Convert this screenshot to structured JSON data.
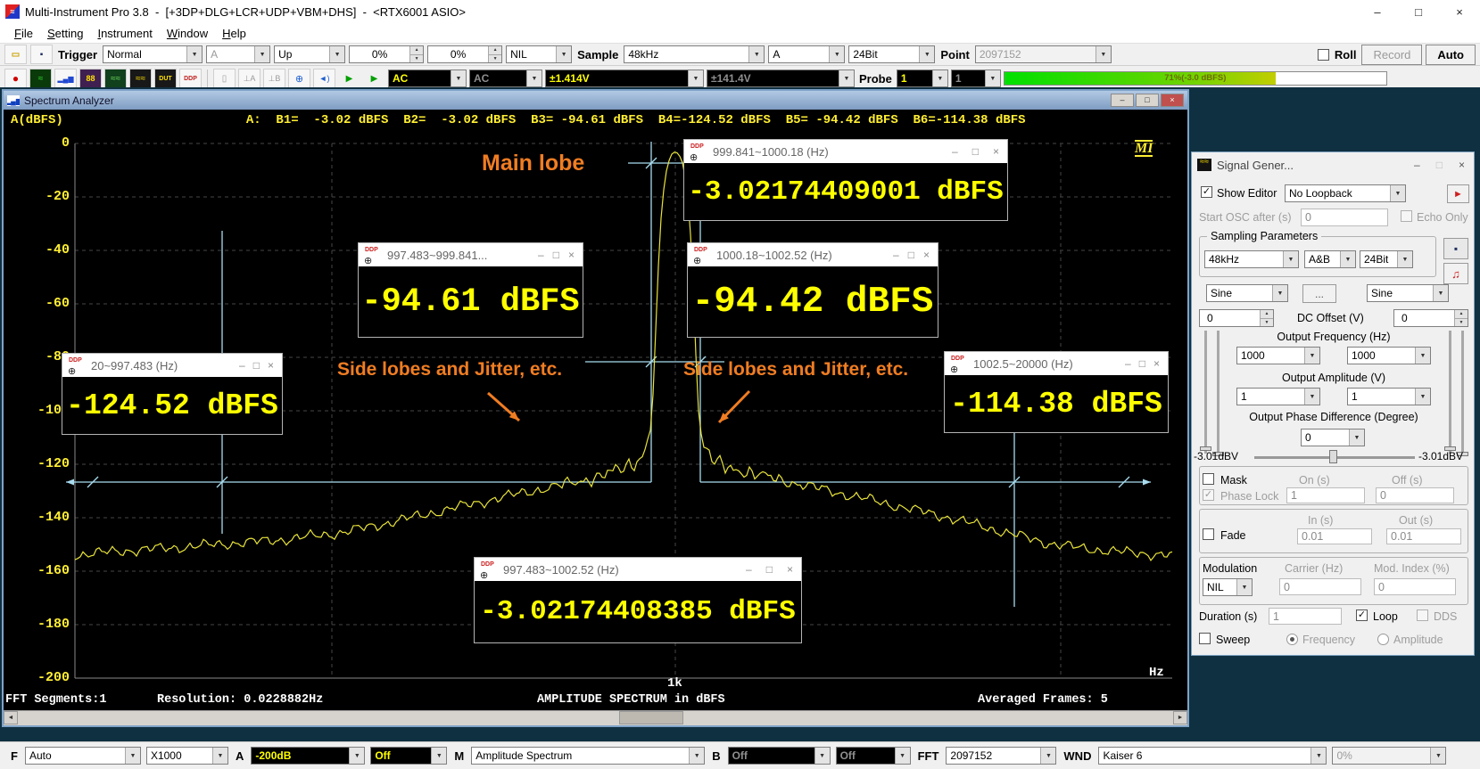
{
  "window": {
    "title": "Multi-Instrument Pro 3.8  -  [+3DP+DLG+LCR+UDP+VBM+DHS]  -  <RTX6001 ASIO>"
  },
  "menu": {
    "items": [
      "File",
      "Setting",
      "Instrument",
      "Window",
      "Help"
    ]
  },
  "icons": {
    "dropdown": "▼",
    "spin_up": "▲",
    "spin_down": "▼",
    "minimize": "–",
    "maximize": "□",
    "close": "×",
    "check": "✓",
    "play_green": "▶",
    "play_red": "►",
    "note": "♫",
    "ddp": "DDP",
    "magnifier": "⊕",
    "probe_a": "⊥A",
    "probe_b": "⊥B",
    "speaker": "◄)",
    "mic": "▯",
    "wave": "≈",
    "wave2": "≈≈",
    "bars": "▂▄▆",
    "dut": "DUT",
    "seg": "88",
    "record_dot": "●",
    "scroll_left": "◄",
    "scroll_right": "►",
    "folder": "▭",
    "floppy": "▪"
  },
  "toolbar1": {
    "trigger_label": "Trigger",
    "trigger_mode": "Normal",
    "trigger_source": "A",
    "trigger_edge": "Up",
    "trigger_level": "0%",
    "trigger_delay": "0%",
    "hpf": "NIL",
    "sample_label": "Sample",
    "sample_rate": "48kHz",
    "sample_channel": "A",
    "bit_depth": "24Bit",
    "point_label": "Point",
    "record_points": "2097152",
    "roll_label": "Roll",
    "record_label": "Record",
    "auto_label": "Auto"
  },
  "toolbar2": {
    "coupling_a": "AC",
    "coupling_b": "AC",
    "range_a": "±1.414V",
    "range_b": "±141.4V",
    "probe_label": "Probe",
    "probe_a": "1",
    "probe_b": "1",
    "progress_label": "71%(-3.0 dBFS)",
    "progress_percent": 71
  },
  "spectrum": {
    "title": "Spectrum Analyzer",
    "ylabel": "A(dBFS)",
    "readout": "A:  B1=  -3.02 dBFS  B2=  -3.02 dBFS  B3= -94.61 dBFS  B4=-124.52 dBFS  B5= -94.42 dBFS  B6=-114.38 dBFS",
    "logo": "MI",
    "y_ticks": [
      "0",
      "-20",
      "-40",
      "-60",
      "-80",
      "-100",
      "-120",
      "-140",
      "-160",
      "-180",
      "-200"
    ],
    "x_tick": "1k",
    "x_unit": "Hz",
    "status": {
      "segments": "FFT Segments:1",
      "resolution": "Resolution: 0.0228882Hz",
      "center": "AMPLITUDE SPECTRUM in dBFS",
      "frames": "Averaged Frames: 5"
    },
    "annotations": {
      "main_lobe": "Main lobe",
      "side_left": "Side lobes and Jitter, etc.",
      "side_right": "Side lobes and Jitter, etc."
    },
    "popups": [
      {
        "title": "999.841~1000.18 (Hz)",
        "value": "-3.02174409001 dBFS"
      },
      {
        "title": "997.483~999.841...",
        "value": "-94.61 dBFS"
      },
      {
        "title": "1000.18~1002.52 (Hz)",
        "value": "-94.42 dBFS"
      },
      {
        "title": "20~997.483 (Hz)",
        "value": "-124.52 dBFS"
      },
      {
        "title": "1002.5~20000 (Hz)",
        "value": "-114.38 dBFS"
      },
      {
        "title": "997.483~1002.52 (Hz)",
        "value": "-3.02174408385 dBFS"
      }
    ],
    "curve_anchors": [
      [
        80,
        -154
      ],
      [
        130,
        -152.5
      ],
      [
        200,
        -151
      ],
      [
        260,
        -149.5
      ],
      [
        320,
        -148
      ],
      [
        380,
        -145.5
      ],
      [
        430,
        -142
      ],
      [
        470,
        -139
      ],
      [
        510,
        -136
      ],
      [
        550,
        -133
      ],
      [
        585,
        -130.5
      ],
      [
        615,
        -128.5
      ],
      [
        645,
        -126.5
      ],
      [
        672,
        -124
      ],
      [
        695,
        -121.5
      ],
      [
        710,
        -119
      ],
      [
        720,
        -114
      ],
      [
        726,
        -106
      ],
      [
        729,
        -88
      ],
      [
        733,
        -52
      ],
      [
        738,
        -22
      ],
      [
        744,
        -8
      ],
      [
        749,
        -4
      ],
      [
        753,
        -3.02
      ],
      [
        757,
        -4
      ],
      [
        762,
        -8
      ],
      [
        768,
        -22
      ],
      [
        773,
        -52
      ],
      [
        777,
        -88
      ],
      [
        780,
        -106
      ],
      [
        786,
        -114
      ],
      [
        796,
        -119
      ],
      [
        810,
        -121
      ],
      [
        835,
        -123
      ],
      [
        865,
        -125.5
      ],
      [
        900,
        -128
      ],
      [
        940,
        -131
      ],
      [
        980,
        -134
      ],
      [
        1020,
        -137
      ],
      [
        1060,
        -140
      ],
      [
        1100,
        -143.5
      ],
      [
        1135,
        -146.5
      ],
      [
        1170,
        -149.5
      ],
      [
        1210,
        -151.5
      ],
      [
        1260,
        -153
      ],
      [
        1310,
        -154
      ]
    ]
  },
  "chart_data": {
    "type": "line",
    "title": "AMPLITUDE SPECTRUM in dBFS",
    "xlabel": "Hz",
    "ylabel": "A(dBFS)",
    "x_scale": "log",
    "xlim": [
      20,
      20000
    ],
    "ylim": [
      -200,
      0
    ],
    "x_tick_labels": [
      "1k"
    ],
    "grid": true,
    "series": [
      {
        "name": "A",
        "x_hz": [
          20,
          100,
          300,
          700,
          950,
          997.5,
          1000,
          1002.5,
          1050,
          1300,
          3000,
          10000,
          20000
        ],
        "y_dbfs": [
          -154,
          -150,
          -147,
          -135,
          -122,
          -100,
          -3.02,
          -100,
          -124,
          -131,
          -140,
          -150,
          -154
        ]
      }
    ],
    "peak": {
      "freq_hz": 1000,
      "level_dbfs": -3.02
    },
    "band_measurements": [
      {
        "band_hz": "999.841~1000.18",
        "dbfs": -3.02174409001
      },
      {
        "band_hz": "997.483~999.841",
        "dbfs": -94.61
      },
      {
        "band_hz": "1000.18~1002.52",
        "dbfs": -94.42
      },
      {
        "band_hz": "20~997.483",
        "dbfs": -124.52
      },
      {
        "band_hz": "1002.5~20000",
        "dbfs": -114.38
      },
      {
        "band_hz": "997.483~1002.52",
        "dbfs": -3.02174408385
      }
    ]
  },
  "bottom_toolbar": {
    "f_label": "F",
    "freq_scale": "Auto",
    "x_multiplier": "X1000",
    "a_label": "A",
    "a_range": "-200dB",
    "a_compare": "Off",
    "m_label": "M",
    "view_mode": "Amplitude Spectrum",
    "b_label": "B",
    "b_range": "Off",
    "b_compare": "Off",
    "fft_label": "FFT",
    "fft_size": "2097152",
    "wnd_label": "WND",
    "wnd_function": "Kaiser 6",
    "overlap": "0%"
  },
  "siggen": {
    "title": "Signal Gener...",
    "show_editor": "Show Editor",
    "loopback": "No Loopback",
    "start_osc_label": "Start OSC after (s)",
    "start_osc_value": "0",
    "echo_only": "Echo Only",
    "sampling_group": "Sampling Parameters",
    "sampling_rate": "48kHz",
    "sampling_channels": "A&B",
    "sampling_bits": "24Bit",
    "wave_a": "Sine",
    "wave_b": "Sine",
    "more": "...",
    "dc_label": "DC Offset (V)",
    "dc_a": "0",
    "dc_b": "0",
    "freq_label": "Output Frequency (Hz)",
    "freq_a": "1000",
    "freq_b": "1000",
    "amp_label": "Output Amplitude (V)",
    "amp_a": "1",
    "amp_b": "1",
    "phase_label": "Output Phase Difference (Degree)",
    "phase_value": "0",
    "level_left": "-3.01dBV",
    "level_right": "-3.01dBV",
    "mask_label": "Mask",
    "on_label": "On (s)",
    "off_label": "Off (s)",
    "phase_lock_label": "Phase Lock",
    "on_value": "1",
    "off_value": "0",
    "fade_label": "Fade",
    "in_label": "In (s)",
    "out_label": "Out (s)",
    "in_value": "0.01",
    "out_value": "0.01",
    "modulation_label": "Modulation",
    "carrier_label": "Carrier (Hz)",
    "mod_index_label": "Mod. Index (%)",
    "modulation_type": "NIL",
    "carrier_value": "0",
    "mod_index_value": "0",
    "duration_label": "Duration (s)",
    "duration_value": "1",
    "loop_label": "Loop",
    "dds_label": "DDS",
    "sweep_label": "Sweep",
    "sweep_frequency": "Frequency",
    "sweep_amplitude": "Amplitude"
  },
  "colors": {
    "trace_yellow": "#e8e33a",
    "marker_cyan": "#a8dcef",
    "annotation_orange": "#f07d22",
    "value_yellow": "#ffff00",
    "progress_green": "#00e000",
    "title_gradient_blue": "#7e9cc2"
  }
}
